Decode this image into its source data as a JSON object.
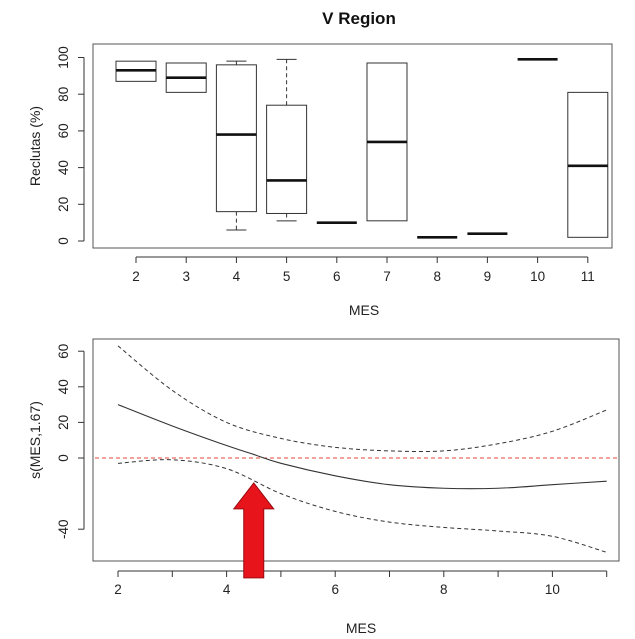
{
  "chart_data": [
    {
      "type": "box",
      "title": "V Region",
      "xlabel": "MES",
      "ylabel": "Reclutas (%)",
      "ylim": [
        0,
        100
      ],
      "yticks": [
        0,
        20,
        40,
        60,
        80,
        100
      ],
      "categories": [
        "2",
        "3",
        "4",
        "5",
        "6",
        "7",
        "8",
        "9",
        "10",
        "11"
      ],
      "boxes": [
        {
          "x": "2",
          "min": 87,
          "q1": 87,
          "median": 93,
          "q3": 98,
          "max": 98
        },
        {
          "x": "3",
          "min": 81,
          "q1": 81,
          "median": 89,
          "q3": 97,
          "max": 97
        },
        {
          "x": "4",
          "min": 6,
          "q1": 16,
          "median": 58,
          "q3": 96,
          "max": 98
        },
        {
          "x": "5",
          "min": 11,
          "q1": 15,
          "median": 33,
          "q3": 74,
          "max": 99
        },
        {
          "x": "6",
          "min": 10,
          "q1": 10,
          "median": 10,
          "q3": 10,
          "max": 10
        },
        {
          "x": "7",
          "min": 11,
          "q1": 11,
          "median": 54,
          "q3": 97,
          "max": 97
        },
        {
          "x": "8",
          "min": 2,
          "q1": 2,
          "median": 2,
          "q3": 2,
          "max": 2
        },
        {
          "x": "9",
          "min": 4,
          "q1": 4,
          "median": 4,
          "q3": 4,
          "max": 4
        },
        {
          "x": "10",
          "min": 99,
          "q1": 99,
          "median": 99,
          "q3": 99,
          "max": 99
        },
        {
          "x": "11",
          "min": 2,
          "q1": 2,
          "median": 41,
          "q3": 81,
          "max": 81
        }
      ]
    },
    {
      "type": "line",
      "xlabel": "MES",
      "ylabel": "s(MES,1.67)",
      "xlim": [
        2,
        11
      ],
      "ylim": [
        -55,
        65
      ],
      "xticks": [
        2,
        4,
        6,
        8,
        10
      ],
      "yticks": [
        60,
        40,
        20,
        0,
        -40
      ],
      "reference_line": {
        "y": 0,
        "color": "#e8463a",
        "style": "dashed"
      },
      "series": [
        {
          "role": "fit",
          "style": "solid",
          "points": [
            [
              2,
              30
            ],
            [
              3,
              18
            ],
            [
              4,
              7
            ],
            [
              4.5,
              2
            ],
            [
              5,
              -3
            ],
            [
              6,
              -10
            ],
            [
              7,
              -15
            ],
            [
              8,
              -17
            ],
            [
              9,
              -17
            ],
            [
              10,
              -15
            ],
            [
              11,
              -13
            ]
          ]
        },
        {
          "role": "upper",
          "style": "dashed",
          "points": [
            [
              2,
              63
            ],
            [
              3,
              38
            ],
            [
              4,
              20
            ],
            [
              5,
              11
            ],
            [
              6,
              6
            ],
            [
              7,
              4
            ],
            [
              8,
              4
            ],
            [
              9,
              8
            ],
            [
              10,
              15
            ],
            [
              11,
              27
            ]
          ]
        },
        {
          "role": "lower",
          "style": "dashed",
          "points": [
            [
              2,
              -3
            ],
            [
              3,
              -1
            ],
            [
              4,
              -6
            ],
            [
              5,
              -20
            ],
            [
              6,
              -30
            ],
            [
              7,
              -36
            ],
            [
              8,
              -39
            ],
            [
              9,
              -41
            ],
            [
              10,
              -44
            ],
            [
              11,
              -53
            ]
          ]
        }
      ],
      "annotation": {
        "type": "arrow",
        "x": 4.5,
        "y": -14,
        "color": "#e8141c"
      }
    }
  ]
}
